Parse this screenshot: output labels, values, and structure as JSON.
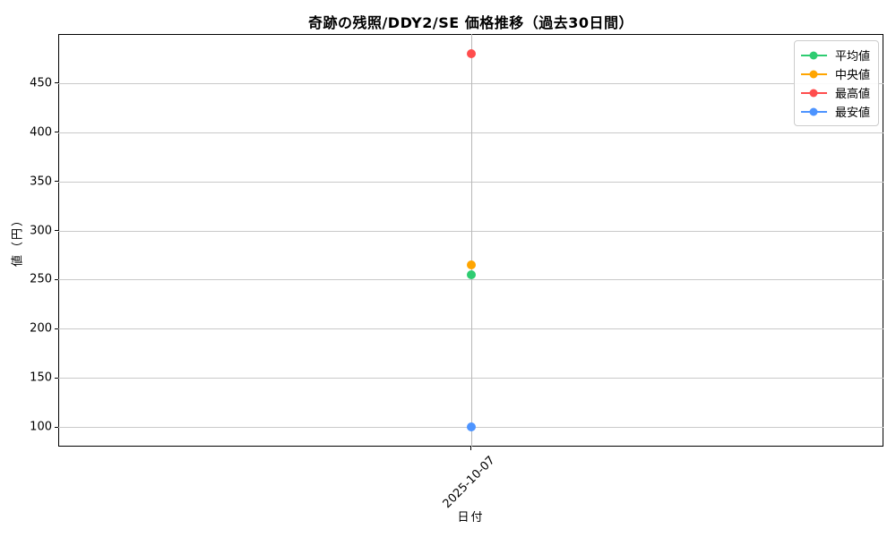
{
  "chart": {
    "title": "奇跡の残照/DDY2/SE 価格推移（過去30日間）",
    "xlabel": "日付",
    "ylabel": "値（円）"
  },
  "chart_data": {
    "type": "line",
    "x": [
      "2025-10-07"
    ],
    "series": [
      {
        "name": "平均値",
        "key": "average",
        "color": "#2ecc71",
        "values": [
          255
        ]
      },
      {
        "name": "中央値",
        "key": "median",
        "color": "#ffa500",
        "values": [
          265
        ]
      },
      {
        "name": "最高値",
        "key": "highest",
        "color": "#ff4d4d",
        "values": [
          480
        ]
      },
      {
        "name": "最安値",
        "key": "lowest",
        "color": "#4d94ff",
        "values": [
          100
        ]
      }
    ],
    "y_ticks": [
      100,
      150,
      200,
      250,
      300,
      350,
      400,
      450
    ],
    "ylim": [
      80,
      500
    ],
    "grid": true,
    "legend_position": "upper right",
    "x_tick_rotation": 45
  }
}
